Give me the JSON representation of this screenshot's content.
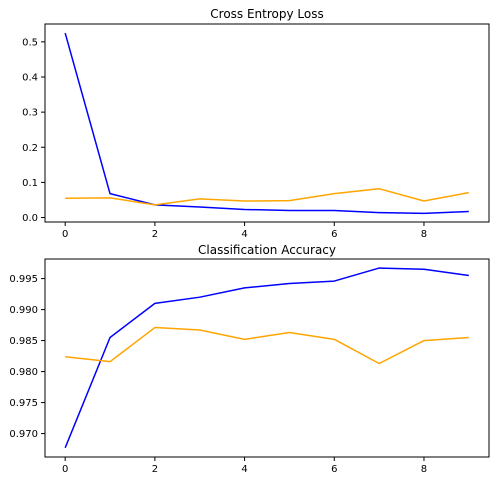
{
  "chart_data": [
    {
      "type": "line",
      "title": "Cross Entropy Loss",
      "xlabel": "",
      "ylabel": "",
      "xlim": [
        -0.45,
        9.45
      ],
      "ylim": [
        -0.0127,
        0.5508
      ],
      "xticks": [
        0,
        2,
        4,
        6,
        8
      ],
      "yticks": [
        0.0,
        0.1,
        0.2,
        0.3,
        0.4,
        0.5
      ],
      "ytick_labels": [
        "0.0",
        "0.1",
        "0.2",
        "0.3",
        "0.4",
        "0.5"
      ],
      "grid": false,
      "x": [
        0,
        1,
        2,
        3,
        4,
        5,
        6,
        7,
        8,
        9
      ],
      "series": [
        {
          "color": "#0000ff",
          "values": [
            0.525,
            0.068,
            0.036,
            0.03,
            0.023,
            0.02,
            0.02,
            0.014,
            0.012,
            0.017
          ]
        },
        {
          "color": "#ffa500",
          "values": [
            0.055,
            0.056,
            0.036,
            0.053,
            0.047,
            0.048,
            0.068,
            0.082,
            0.047,
            0.071
          ]
        }
      ]
    },
    {
      "type": "line",
      "title": "Classification Accuracy",
      "xlabel": "",
      "ylabel": "",
      "xlim": [
        -0.45,
        9.45
      ],
      "ylim": [
        0.96622,
        0.99816
      ],
      "xticks": [
        0,
        2,
        4,
        6,
        8
      ],
      "yticks": [
        0.97,
        0.975,
        0.98,
        0.985,
        0.99,
        0.995
      ],
      "ytick_labels": [
        "0.970",
        "0.975",
        "0.980",
        "0.985",
        "0.990",
        "0.995"
      ],
      "grid": false,
      "x": [
        0,
        1,
        2,
        3,
        4,
        5,
        6,
        7,
        8,
        9
      ],
      "series": [
        {
          "color": "#0000ff",
          "values": [
            0.9677,
            0.9855,
            0.991,
            0.992,
            0.9935,
            0.9942,
            0.9946,
            0.9967,
            0.9965,
            0.9955
          ]
        },
        {
          "color": "#ffa500",
          "values": [
            0.9824,
            0.9816,
            0.9871,
            0.9867,
            0.9852,
            0.9863,
            0.9852,
            0.9813,
            0.985,
            0.9855
          ]
        }
      ]
    }
  ]
}
